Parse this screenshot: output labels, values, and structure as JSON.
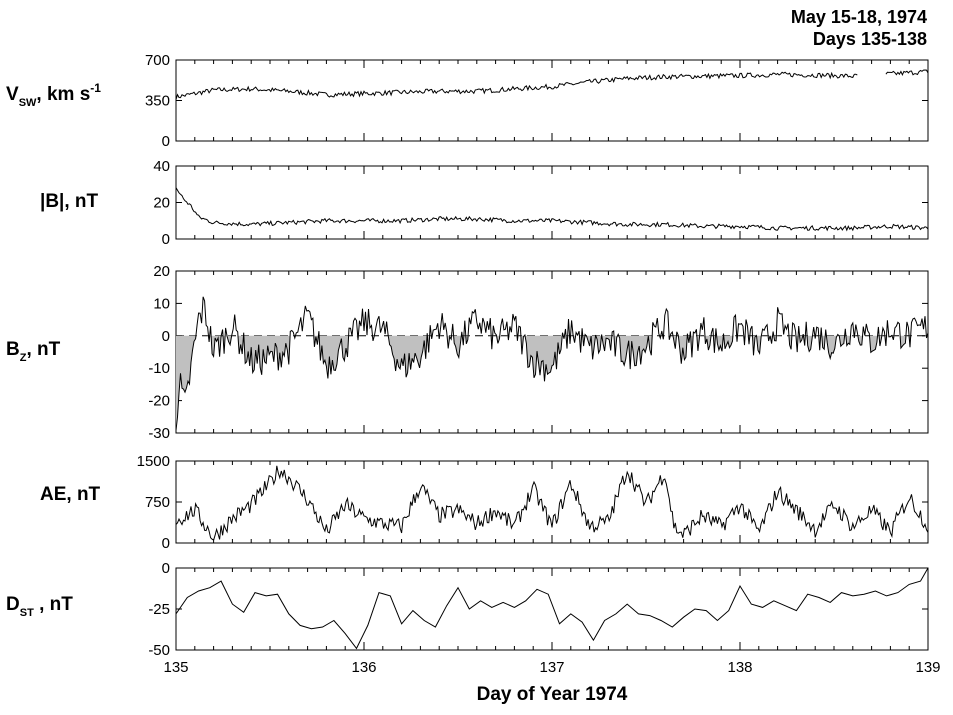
{
  "header": {
    "line1": "May 15-18, 1974",
    "line2": "Days 135-138"
  },
  "x_axis": {
    "title": "Day of Year 1974",
    "ticks": [
      "135",
      "136",
      "137",
      "138",
      "139"
    ]
  },
  "panel_labels": {
    "vsw": {
      "main": "V",
      "sub": "SW",
      "rest": ", km s",
      "sup": "-1"
    },
    "b": {
      "main": "|B|,  nT"
    },
    "bz": {
      "main": "B",
      "sub": "Z",
      "rest": ",  nT"
    },
    "ae": {
      "main": "AE,  nT"
    },
    "dst": {
      "main": "D",
      "sub": "ST",
      "rest": " ,  nT"
    }
  },
  "colors": {
    "line": "#000000",
    "shade": "#c0c0c0",
    "frame": "#000000"
  },
  "chart_data": [
    {
      "type": "line",
      "ylabel": "V_SW, km s^-1",
      "ylim": [
        0,
        700
      ],
      "yticks": [
        "0",
        "350",
        "700"
      ],
      "x": [
        135.0,
        135.2,
        135.4,
        135.6,
        135.8,
        136.0,
        136.2,
        136.4,
        136.6,
        136.8,
        137.0,
        137.2,
        137.4,
        137.6,
        137.8,
        138.0,
        138.2,
        138.4,
        138.6,
        138.8,
        139.0
      ],
      "values": [
        380,
        440,
        450,
        430,
        400,
        410,
        420,
        430,
        430,
        450,
        470,
        510,
        540,
        555,
        560,
        565,
        575,
        570,
        560,
        580,
        600
      ],
      "gaps": [
        [
          138.63,
          138.77
        ]
      ]
    },
    {
      "type": "line",
      "ylabel": "|B|, nT",
      "ylim": [
        0,
        40
      ],
      "yticks": [
        "0",
        "20",
        "40"
      ],
      "x": [
        135.0,
        135.04,
        135.08,
        135.12,
        135.2,
        135.4,
        135.6,
        135.8,
        136.0,
        136.2,
        136.4,
        136.6,
        136.8,
        137.0,
        137.2,
        137.4,
        137.6,
        137.8,
        138.0,
        138.2,
        138.4,
        138.6,
        138.8,
        139.0
      ],
      "values": [
        28,
        22,
        18,
        12,
        9,
        8,
        9,
        10,
        10,
        10,
        11,
        11,
        10,
        10,
        9,
        8,
        8,
        7,
        7,
        6,
        6,
        6,
        7,
        6
      ]
    },
    {
      "type": "area",
      "ylabel": "B_Z, nT",
      "ylim": [
        -30,
        20
      ],
      "yticks": [
        "-30",
        "-20",
        "-10",
        "0",
        "10",
        "20"
      ],
      "baseline": 0,
      "x": [
        135.0,
        135.02,
        135.05,
        135.08,
        135.12,
        135.15,
        135.2,
        135.3,
        135.4,
        135.5,
        135.6,
        135.7,
        135.8,
        135.9,
        136.0,
        136.1,
        136.2,
        136.3,
        136.4,
        136.5,
        136.6,
        136.7,
        136.8,
        136.9,
        137.0,
        137.1,
        137.2,
        137.3,
        137.4,
        137.5,
        137.6,
        137.7,
        137.8,
        137.9,
        138.0,
        138.1,
        138.2,
        138.3,
        138.4,
        138.5,
        138.6,
        138.7,
        138.8,
        138.9,
        139.0
      ],
      "values": [
        -25,
        -15,
        -22,
        -10,
        5,
        9,
        -5,
        3,
        -8,
        -7,
        -4,
        6,
        -9,
        -3,
        4,
        2,
        -10,
        -6,
        4,
        -3,
        5,
        -1,
        3,
        -8,
        -10,
        2,
        -4,
        -2,
        -6,
        -3,
        4,
        -5,
        2,
        -3,
        3,
        -4,
        4,
        -2,
        1,
        -3,
        3,
        -2,
        2,
        0,
        3
      ]
    },
    {
      "type": "line",
      "ylabel": "AE, nT",
      "ylim": [
        0,
        1500
      ],
      "yticks": [
        "0",
        "750",
        "1500"
      ],
      "x": [
        135.0,
        135.1,
        135.2,
        135.3,
        135.4,
        135.5,
        135.55,
        135.6,
        135.7,
        135.8,
        135.9,
        136.0,
        136.1,
        136.2,
        136.3,
        136.4,
        136.5,
        136.6,
        136.7,
        136.8,
        136.9,
        137.0,
        137.1,
        137.2,
        137.3,
        137.4,
        137.5,
        137.6,
        137.65,
        137.7,
        137.8,
        137.9,
        138.0,
        138.1,
        138.2,
        138.3,
        138.4,
        138.5,
        138.6,
        138.7,
        138.8,
        138.9,
        139.0
      ],
      "values": [
        400,
        600,
        100,
        450,
        700,
        1100,
        1350,
        1200,
        800,
        200,
        700,
        450,
        350,
        300,
        1050,
        500,
        600,
        350,
        600,
        300,
        1000,
        300,
        1100,
        300,
        400,
        1350,
        700,
        1300,
        300,
        150,
        500,
        300,
        700,
        200,
        950,
        600,
        250,
        700,
        300,
        600,
        200,
        850,
        300
      ]
    },
    {
      "type": "line",
      "ylabel": "D_ST, nT",
      "ylim": [
        -50,
        0
      ],
      "yticks": [
        "-50",
        "-25",
        "0"
      ],
      "x": [
        135.0,
        135.06,
        135.12,
        135.18,
        135.24,
        135.3,
        135.36,
        135.42,
        135.48,
        135.54,
        135.6,
        135.66,
        135.72,
        135.78,
        135.84,
        135.9,
        135.96,
        136.02,
        136.08,
        136.14,
        136.2,
        136.26,
        136.32,
        136.38,
        136.44,
        136.5,
        136.56,
        136.62,
        136.68,
        136.74,
        136.8,
        136.86,
        136.92,
        136.98,
        137.04,
        137.1,
        137.16,
        137.22,
        137.28,
        137.34,
        137.4,
        137.46,
        137.52,
        137.58,
        137.64,
        137.7,
        137.76,
        137.82,
        137.88,
        137.94,
        138.0,
        138.06,
        138.12,
        138.18,
        138.24,
        138.3,
        138.36,
        138.42,
        138.48,
        138.54,
        138.6,
        138.66,
        138.72,
        138.78,
        138.84,
        138.9,
        138.96,
        139.0
      ],
      "values": [
        -28,
        -18,
        -14,
        -12,
        -8,
        -22,
        -27,
        -15,
        -17,
        -16,
        -28,
        -35,
        -37,
        -36,
        -32,
        -40,
        -49,
        -35,
        -15,
        -17,
        -34,
        -26,
        -32,
        -36,
        -23,
        -12,
        -25,
        -20,
        -24,
        -21,
        -24,
        -20,
        -13,
        -16,
        -34,
        -28,
        -33,
        -44,
        -32,
        -28,
        -22,
        -28,
        -29,
        -32,
        -36,
        -30,
        -25,
        -26,
        -32,
        -26,
        -11,
        -22,
        -24,
        -20,
        -23,
        -26,
        -16,
        -18,
        -21,
        -15,
        -17,
        -16,
        -14,
        -17,
        -15,
        -10,
        -8,
        0
      ]
    }
  ]
}
